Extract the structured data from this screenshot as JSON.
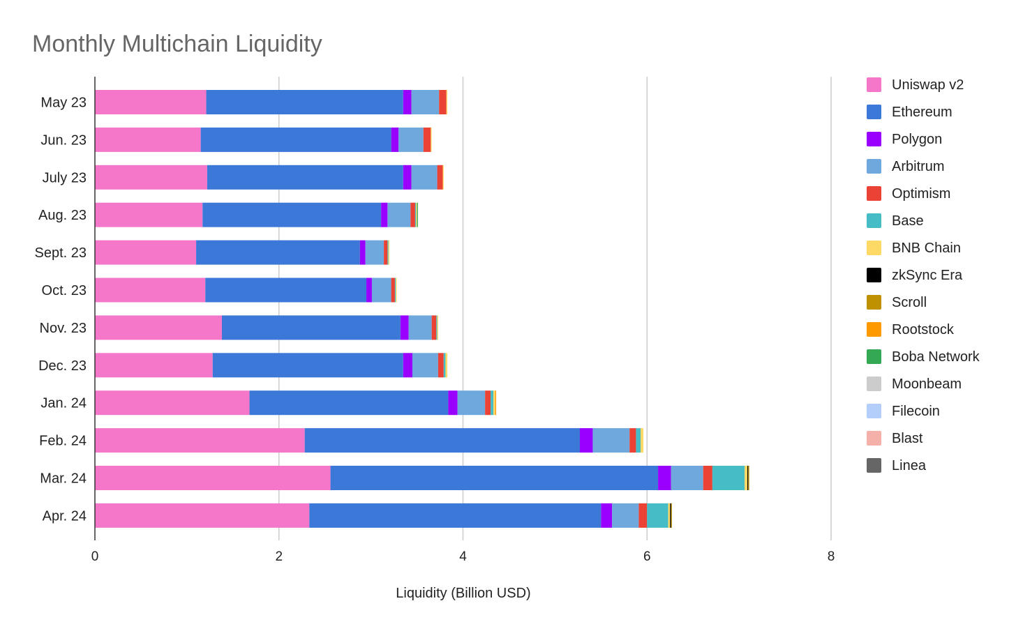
{
  "chart_data": {
    "type": "bar",
    "orientation": "horizontal",
    "stacked": true,
    "title": "Monthly Multichain Liquidity",
    "xlabel": "Liquidity (Billion USD)",
    "ylabel": "",
    "xlim": [
      0,
      8
    ],
    "xticks": [
      "0",
      "2",
      "4",
      "6",
      "8"
    ],
    "grid": "vertical",
    "legend_position": "right",
    "categories": [
      "May 23",
      "Jun. 23",
      "July 23",
      "Aug. 23",
      "Sept. 23",
      "Oct. 23",
      "Nov. 23",
      "Dec. 23",
      "Jan. 24",
      "Feb. 24",
      "Mar. 24",
      "Apr. 24"
    ],
    "series": [
      {
        "name": "Uniswap v2",
        "color": "#f477c9",
        "values": [
          1.21,
          1.15,
          1.22,
          1.17,
          1.1,
          1.2,
          1.38,
          1.28,
          1.68,
          2.28,
          2.56,
          2.33
        ]
      },
      {
        "name": "Ethereum",
        "color": "#3c78d8",
        "values": [
          2.14,
          2.07,
          2.13,
          1.94,
          1.78,
          1.75,
          1.94,
          2.07,
          2.16,
          2.99,
          3.56,
          3.17
        ]
      },
      {
        "name": "Polygon",
        "color": "#9900ff",
        "values": [
          0.09,
          0.08,
          0.09,
          0.07,
          0.06,
          0.06,
          0.09,
          0.1,
          0.1,
          0.14,
          0.14,
          0.12
        ]
      },
      {
        "name": "Arbitrum",
        "color": "#6fa8dc",
        "values": [
          0.3,
          0.27,
          0.28,
          0.25,
          0.2,
          0.21,
          0.25,
          0.28,
          0.3,
          0.4,
          0.35,
          0.29
        ]
      },
      {
        "name": "Optimism",
        "color": "#ea4335",
        "values": [
          0.08,
          0.08,
          0.06,
          0.05,
          0.04,
          0.04,
          0.05,
          0.06,
          0.06,
          0.07,
          0.1,
          0.09
        ]
      },
      {
        "name": "Base",
        "color": "#46bdc6",
        "values": [
          0.0,
          0.0,
          0.0,
          0.01,
          0.01,
          0.01,
          0.01,
          0.02,
          0.03,
          0.05,
          0.35,
          0.23
        ]
      },
      {
        "name": "BNB Chain",
        "color": "#ffd966",
        "values": [
          0.01,
          0.01,
          0.01,
          0.01,
          0.01,
          0.01,
          0.01,
          0.02,
          0.02,
          0.03,
          0.03,
          0.02
        ]
      },
      {
        "name": "zkSync Era",
        "color": "#000000",
        "values": [
          0.0,
          0.0,
          0.0,
          0.0,
          0.0,
          0.0,
          0.0,
          0.0,
          0.0,
          0.0,
          0.01,
          0.01
        ]
      },
      {
        "name": "Scroll",
        "color": "#bf9000",
        "values": [
          0.0,
          0.0,
          0.0,
          0.0,
          0.0,
          0.0,
          0.0,
          0.0,
          0.0,
          0.0,
          0.01,
          0.01
        ]
      },
      {
        "name": "Rootstock",
        "color": "#ff9900",
        "values": [
          0.0,
          0.0,
          0.0,
          0.0,
          0.0,
          0.0,
          0.0,
          0.0,
          0.01,
          0.0,
          0.0,
          0.0
        ]
      },
      {
        "name": "Boba Network",
        "color": "#34a853",
        "values": [
          0.0,
          0.0,
          0.0,
          0.01,
          0.0,
          0.0,
          0.0,
          0.0,
          0.0,
          0.0,
          0.0,
          0.0
        ]
      },
      {
        "name": "Moonbeam",
        "color": "#cccccc",
        "values": [
          0.0,
          0.0,
          0.0,
          0.0,
          0.0,
          0.0,
          0.0,
          0.0,
          0.0,
          0.0,
          0.0,
          0.0
        ]
      },
      {
        "name": "Filecoin",
        "color": "#b4cefb",
        "values": [
          0.0,
          0.0,
          0.0,
          0.0,
          0.0,
          0.0,
          0.0,
          0.0,
          0.0,
          0.0,
          0.0,
          0.0
        ]
      },
      {
        "name": "Blast",
        "color": "#f6b0aa",
        "values": [
          0.0,
          0.0,
          0.0,
          0.0,
          0.0,
          0.0,
          0.0,
          0.0,
          0.0,
          0.0,
          0.0,
          0.0
        ]
      },
      {
        "name": "Linea",
        "color": "#666666",
        "values": [
          0.0,
          0.0,
          0.0,
          0.0,
          0.0,
          0.0,
          0.0,
          0.0,
          0.0,
          0.0,
          0.0,
          0.0
        ]
      }
    ]
  }
}
